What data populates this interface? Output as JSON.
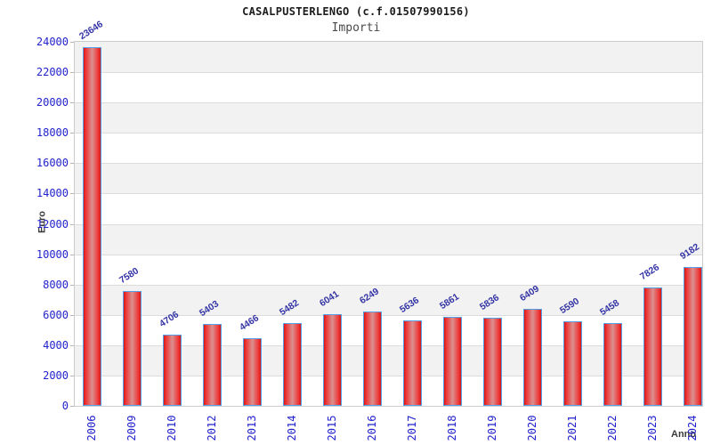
{
  "header": {
    "title": "CASALPUSTERLENGO (c.f.01507990156)",
    "subtitle": "Importi"
  },
  "chart_data": {
    "type": "bar",
    "title": "CASALPUSTERLENGO (c.f.01507990156)",
    "subtitle": "Importi",
    "xlabel": "Anno",
    "ylabel": "Euro",
    "categories": [
      "2006",
      "2009",
      "2010",
      "2012",
      "2013",
      "2014",
      "2015",
      "2016",
      "2017",
      "2018",
      "2019",
      "2020",
      "2021",
      "2022",
      "2023",
      "2024"
    ],
    "values": [
      23646,
      7580,
      4706,
      5403,
      4466,
      5482,
      6041,
      6249,
      5636,
      5861,
      5836,
      6409,
      5590,
      5458,
      7826,
      9182
    ],
    "ylim": [
      0,
      24000
    ],
    "y_ticks": [
      0,
      2000,
      4000,
      6000,
      8000,
      10000,
      12000,
      14000,
      16000,
      18000,
      20000,
      22000,
      24000
    ],
    "grid": "horizontal",
    "legend": "none",
    "bands": "alternating horizontal, gray on top band",
    "colors": {
      "bar_edge": "#d31515",
      "bar_bright": "#ee3333",
      "bar_center": "#dc9090",
      "bar_border": "#55a0e6",
      "value_label": "#3333a6",
      "axis_tick_label": "#2222cc",
      "axis_title": "#3a3a3a",
      "band": "#f2f2f2",
      "gridline": "#dcdcdc",
      "plot_border": "#cbcbcb",
      "tick_mark": "#b5b5b5"
    }
  }
}
